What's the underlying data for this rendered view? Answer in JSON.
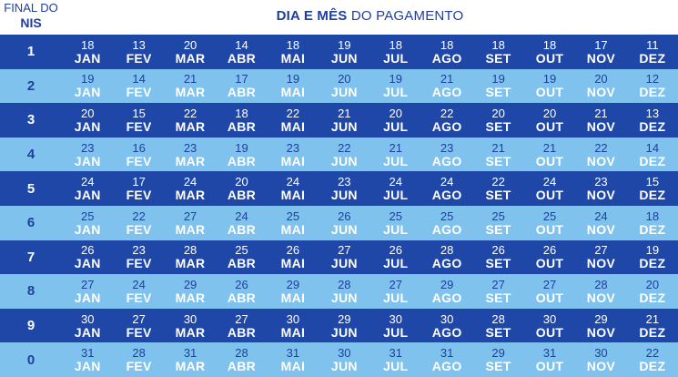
{
  "header": {
    "nis_line1": "FINAL DO",
    "nis_line2": "NIS",
    "title_bold": "DIA E MÊS",
    "title_rest": " DO PAGAMENTO"
  },
  "colors": {
    "dark_row": "#1f47a8",
    "light_row": "#7fc2ee",
    "header_text": "#1f3f9c"
  },
  "months": [
    "JAN",
    "FEV",
    "MAR",
    "ABR",
    "MAI",
    "JUN",
    "JUL",
    "AGO",
    "SET",
    "OUT",
    "NOV",
    "DEZ"
  ],
  "rows": [
    {
      "nis": "1",
      "days": [
        "18",
        "13",
        "20",
        "14",
        "18",
        "19",
        "18",
        "18",
        "18",
        "18",
        "17",
        "11"
      ]
    },
    {
      "nis": "2",
      "days": [
        "19",
        "14",
        "21",
        "17",
        "19",
        "20",
        "19",
        "21",
        "19",
        "19",
        "20",
        "12"
      ]
    },
    {
      "nis": "3",
      "days": [
        "20",
        "15",
        "22",
        "18",
        "22",
        "21",
        "20",
        "22",
        "20",
        "20",
        "21",
        "13"
      ]
    },
    {
      "nis": "4",
      "days": [
        "23",
        "16",
        "23",
        "19",
        "23",
        "22",
        "21",
        "23",
        "21",
        "21",
        "22",
        "14"
      ]
    },
    {
      "nis": "5",
      "days": [
        "24",
        "17",
        "24",
        "20",
        "24",
        "23",
        "24",
        "24",
        "22",
        "24",
        "23",
        "15"
      ]
    },
    {
      "nis": "6",
      "days": [
        "25",
        "22",
        "27",
        "24",
        "25",
        "26",
        "25",
        "25",
        "25",
        "25",
        "24",
        "18"
      ]
    },
    {
      "nis": "7",
      "days": [
        "26",
        "23",
        "28",
        "25",
        "26",
        "27",
        "26",
        "28",
        "26",
        "26",
        "27",
        "19"
      ]
    },
    {
      "nis": "8",
      "days": [
        "27",
        "24",
        "29",
        "26",
        "29",
        "28",
        "27",
        "29",
        "27",
        "27",
        "28",
        "20"
      ]
    },
    {
      "nis": "9",
      "days": [
        "30",
        "27",
        "30",
        "27",
        "30",
        "29",
        "30",
        "30",
        "28",
        "30",
        "29",
        "21"
      ]
    },
    {
      "nis": "0",
      "days": [
        "31",
        "28",
        "31",
        "28",
        "31",
        "30",
        "31",
        "31",
        "29",
        "31",
        "30",
        "22"
      ]
    }
  ]
}
